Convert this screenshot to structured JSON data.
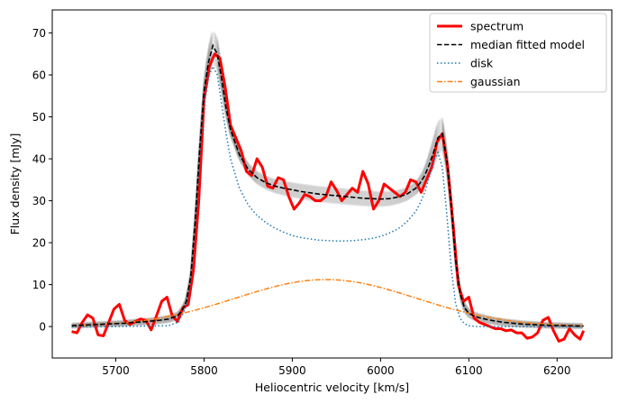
{
  "chart_data": {
    "type": "line",
    "xlabel": "Heliocentric velocity [km/s]",
    "ylabel": "Flux density [mJy]",
    "xlim": [
      5628,
      6262
    ],
    "ylim": [
      -7.5,
      75.5
    ],
    "xticks": [
      5700,
      5800,
      5900,
      6000,
      6100,
      6200
    ],
    "yticks": [
      0,
      10,
      20,
      30,
      40,
      50,
      60,
      70
    ],
    "grid": false,
    "legend_position": "top-right",
    "series": [
      {
        "name": "spectrum",
        "style": "solid-thick",
        "color": "#ff0000",
        "x": [
          5650,
          5656,
          5662,
          5668,
          5674,
          5680,
          5686,
          5692,
          5698,
          5704,
          5710,
          5716,
          5722,
          5728,
          5734,
          5740,
          5746,
          5752,
          5758,
          5764,
          5770,
          5776,
          5782,
          5788,
          5794,
          5800,
          5806,
          5812,
          5818,
          5824,
          5830,
          5836,
          5842,
          5848,
          5854,
          5860,
          5866,
          5872,
          5878,
          5884,
          5890,
          5896,
          5902,
          5908,
          5914,
          5920,
          5926,
          5932,
          5938,
          5944,
          5950,
          5956,
          5962,
          5968,
          5974,
          5980,
          5986,
          5992,
          5998,
          6004,
          6010,
          6016,
          6022,
          6028,
          6034,
          6040,
          6046,
          6052,
          6058,
          6064,
          6070,
          6076,
          6082,
          6088,
          6094,
          6100,
          6106,
          6112,
          6118,
          6124,
          6130,
          6136,
          6142,
          6148,
          6154,
          6160,
          6166,
          6172,
          6178,
          6184,
          6190,
          6196,
          6202,
          6208,
          6214,
          6220,
          6226,
          6230
        ],
        "y": [
          -1.2,
          -1.5,
          1.0,
          2.8,
          2.0,
          -2.0,
          -2.2,
          1.0,
          4.2,
          5.3,
          1.5,
          0.5,
          1.2,
          1.8,
          1.5,
          -0.8,
          2.5,
          6.0,
          7.0,
          2.5,
          1.2,
          4.5,
          5.2,
          13.5,
          30.0,
          54.0,
          62.0,
          65.0,
          64.0,
          57.0,
          48.0,
          45.0,
          42.0,
          37.0,
          36.0,
          40.0,
          38.0,
          33.5,
          33.0,
          35.5,
          35.0,
          31.0,
          28.0,
          29.5,
          31.5,
          31.0,
          30.0,
          30.0,
          31.0,
          34.5,
          32.5,
          30.0,
          31.5,
          33.0,
          32.0,
          37.0,
          34.0,
          28.0,
          30.0,
          34.0,
          33.0,
          32.0,
          31.0,
          32.0,
          35.0,
          34.5,
          32.0,
          35.0,
          38.0,
          44.0,
          46.0,
          38.0,
          25.0,
          10.0,
          6.0,
          7.0,
          2.0,
          1.0,
          0.5,
          0.0,
          -0.5,
          -0.5,
          -1.0,
          -0.8,
          -1.5,
          -1.5,
          -2.8,
          -2.5,
          -1.5,
          1.5,
          2.2,
          -1.0,
          -3.5,
          -3.0,
          -0.5,
          -2.0,
          -3.0,
          -1.0
        ]
      },
      {
        "name": "median fitted model",
        "style": "dashed",
        "color": "#000000",
        "x": [
          5650,
          5660,
          5670,
          5680,
          5690,
          5700,
          5710,
          5720,
          5730,
          5740,
          5750,
          5760,
          5770,
          5775,
          5780,
          5785,
          5790,
          5795,
          5800,
          5805,
          5810,
          5815,
          5820,
          5825,
          5830,
          5840,
          5850,
          5860,
          5870,
          5880,
          5890,
          5900,
          5910,
          5920,
          5930,
          5940,
          5950,
          5960,
          5970,
          5980,
          5990,
          6000,
          6010,
          6020,
          6030,
          6040,
          6045,
          6050,
          6055,
          6060,
          6065,
          6070,
          6075,
          6080,
          6085,
          6090,
          6095,
          6100,
          6105,
          6110,
          6120,
          6130,
          6140,
          6150,
          6160,
          6170,
          6180,
          6190,
          6200,
          6210,
          6220,
          6230
        ],
        "y": [
          0.2,
          0.3,
          0.4,
          0.5,
          0.6,
          0.7,
          0.8,
          1.0,
          1.1,
          1.3,
          1.5,
          1.8,
          2.6,
          3.8,
          6.0,
          12.0,
          25.0,
          42.0,
          56.0,
          63.0,
          67.0,
          65.0,
          59.0,
          52.0,
          47.0,
          41.0,
          37.5,
          35.5,
          34.3,
          33.5,
          33.0,
          32.6,
          32.2,
          31.9,
          31.6,
          31.4,
          31.2,
          31.0,
          30.8,
          30.6,
          30.5,
          30.4,
          30.5,
          30.9,
          31.6,
          33.0,
          34.3,
          36.0,
          38.5,
          41.5,
          45.0,
          46.0,
          40.0,
          29.0,
          16.0,
          8.0,
          4.5,
          3.2,
          2.6,
          2.2,
          1.7,
          1.3,
          1.0,
          0.8,
          0.6,
          0.5,
          0.4,
          0.3,
          0.25,
          0.2,
          0.15,
          0.1
        ]
      },
      {
        "name": "disk",
        "style": "dotted",
        "color": "#1f77b4",
        "x": [
          5650,
          5700,
          5760,
          5770,
          5775,
          5780,
          5785,
          5790,
          5795,
          5800,
          5805,
          5810,
          5815,
          5820,
          5825,
          5830,
          5840,
          5850,
          5860,
          5870,
          5880,
          5890,
          5900,
          5910,
          5920,
          5930,
          5940,
          5950,
          5960,
          5970,
          5980,
          5990,
          6000,
          6010,
          6020,
          6030,
          6040,
          6045,
          6050,
          6055,
          6060,
          6065,
          6070,
          6075,
          6080,
          6085,
          6090,
          6095,
          6100,
          6110,
          6150,
          6200,
          6230
        ],
        "y": [
          0,
          0,
          0.2,
          1.0,
          2.5,
          5.0,
          11.0,
          23.0,
          40.0,
          53.0,
          59.5,
          62.0,
          60.0,
          53.0,
          46.0,
          40.0,
          33.0,
          29.0,
          26.5,
          24.8,
          23.5,
          22.5,
          21.7,
          21.2,
          20.9,
          20.6,
          20.5,
          20.4,
          20.4,
          20.5,
          20.7,
          21.0,
          21.5,
          22.3,
          23.3,
          25.0,
          27.5,
          29.5,
          32.0,
          35.5,
          39.5,
          41.5,
          38.0,
          27.0,
          14.0,
          5.5,
          2.0,
          0.7,
          0.2,
          0,
          0,
          0,
          0
        ]
      },
      {
        "name": "gaussian",
        "style": "dashdot",
        "color": "#ff7f0e",
        "gaussian": {
          "amplitude": 11.2,
          "center": 5938,
          "sigma": 102
        },
        "x_range": [
          5650,
          6230
        ]
      }
    ],
    "samples_band": {
      "color": "#808080",
      "description": "fitted model samples"
    }
  }
}
